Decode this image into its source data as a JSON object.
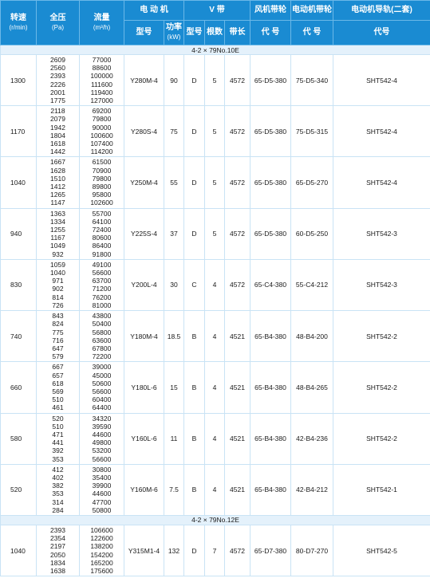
{
  "headers": {
    "speed": "转速",
    "speed_unit": "(r/min)",
    "pressure": "全压",
    "pressure_unit": "(Pa)",
    "flow": "流量",
    "flow_unit": "(m³/h)",
    "motor": "电 动 机",
    "vbelt": "V  带",
    "fan_pulley": "风机带轮",
    "motor_pulley": "电动机带轮",
    "motor_rail": "电动机导轨(二套)",
    "motor_model": "型号",
    "motor_power": "功率",
    "motor_power_unit": "(kW)",
    "belt_type": "型号",
    "belt_count": "根数",
    "belt_length": "带长",
    "fan_pulley_code": "代  号",
    "motor_pulley_code": "代  号",
    "rail_code": "代号"
  },
  "sections": [
    {
      "title": "4-2 × 79No.10E",
      "rows": [
        {
          "speed": "1300",
          "pressure": [
            "2609",
            "2560",
            "2393",
            "2226",
            "2001",
            "1775"
          ],
          "flow": [
            "77000",
            "88600",
            "100000",
            "111600",
            "119400",
            "127000"
          ],
          "motor": "Y280M-4",
          "power": "90",
          "belt": "D",
          "count": "5",
          "length": "4572",
          "fan_pulley": "65-D5-380",
          "motor_pulley": "75-D5-340",
          "rail": "SHT542-4"
        },
        {
          "speed": "1170",
          "pressure": [
            "2118",
            "2079",
            "1942",
            "1804",
            "1618",
            "1442"
          ],
          "flow": [
            "69200",
            "79800",
            "90000",
            "100600",
            "107400",
            "114200"
          ],
          "motor": "Y280S-4",
          "power": "75",
          "belt": "D",
          "count": "5",
          "length": "4572",
          "fan_pulley": "65-D5-380",
          "motor_pulley": "75-D5-315",
          "rail": "SHT542-4"
        },
        {
          "speed": "1040",
          "pressure": [
            "1667",
            "1628",
            "1510",
            "1412",
            "1265",
            "1147"
          ],
          "flow": [
            "61500",
            "70900",
            "79800",
            "89800",
            "95800",
            "102600"
          ],
          "motor": "Y250M-4",
          "power": "55",
          "belt": "D",
          "count": "5",
          "length": "4572",
          "fan_pulley": "65-D5-380",
          "motor_pulley": "65-D5-270",
          "rail": "SHT542-4"
        },
        {
          "speed": "940",
          "pressure": [
            "1363",
            "1334",
            "1255",
            "1167",
            "1049",
            "932"
          ],
          "flow": [
            "55700",
            "64100",
            "72400",
            "80600",
            "86400",
            "91800"
          ],
          "motor": "Y225S-4",
          "power": "37",
          "belt": "D",
          "count": "5",
          "length": "4572",
          "fan_pulley": "65-D5-380",
          "motor_pulley": "60-D5-250",
          "rail": "SHT542-3"
        },
        {
          "speed": "830",
          "pressure": [
            "1059",
            "1040",
            "971",
            "902",
            "814",
            "726"
          ],
          "flow": [
            "49100",
            "56600",
            "63700",
            "71200",
            "76200",
            "81000"
          ],
          "motor": "Y200L-4",
          "power": "30",
          "belt": "C",
          "count": "4",
          "length": "4572",
          "fan_pulley": "65-C4-380",
          "motor_pulley": "55-C4-212",
          "rail": "SHT542-3"
        },
        {
          "speed": "740",
          "pressure": [
            "843",
            "824",
            "775",
            "716",
            "647",
            "579"
          ],
          "flow": [
            "43800",
            "50400",
            "56800",
            "63600",
            "67800",
            "72200"
          ],
          "motor": "Y180M-4",
          "power": "18.5",
          "belt": "B",
          "count": "4",
          "length": "4521",
          "fan_pulley": "65-B4-380",
          "motor_pulley": "48-B4-200",
          "rail": "SHT542-2"
        },
        {
          "speed": "660",
          "pressure": [
            "667",
            "657",
            "618",
            "569",
            "510",
            "461"
          ],
          "flow": [
            "39000",
            "45000",
            "50600",
            "56600",
            "60400",
            "64400"
          ],
          "motor": "Y180L-6",
          "power": "15",
          "belt": "B",
          "count": "4",
          "length": "4521",
          "fan_pulley": "65-B4-380",
          "motor_pulley": "48-B4-265",
          "rail": "SHT542-2"
        },
        {
          "speed": "580",
          "pressure": [
            "520",
            "510",
            "471",
            "441",
            "392",
            "353"
          ],
          "flow": [
            "34320",
            "39590",
            "44600",
            "49800",
            "53200",
            "56600"
          ],
          "motor": "Y160L-6",
          "power": "11",
          "belt": "B",
          "count": "4",
          "length": "4521",
          "fan_pulley": "65-B4-380",
          "motor_pulley": "42-B4-236",
          "rail": "SHT542-2"
        },
        {
          "speed": "520",
          "pressure": [
            "412",
            "402",
            "382",
            "353",
            "314",
            "284"
          ],
          "flow": [
            "30800",
            "35400",
            "39900",
            "44600",
            "47700",
            "50800"
          ],
          "motor": "Y160M-6",
          "power": "7.5",
          "belt": "B",
          "count": "4",
          "length": "4521",
          "fan_pulley": "65-B4-380",
          "motor_pulley": "42-B4-212",
          "rail": "SHT542-1"
        }
      ]
    },
    {
      "title": "4-2 × 79No.12E",
      "rows": [
        {
          "speed": "1040",
          "pressure": [
            "2393",
            "2354",
            "2197",
            "2050",
            "1834",
            "1638"
          ],
          "flow": [
            "106600",
            "122600",
            "138200",
            "154200",
            "165200",
            "175600"
          ],
          "motor": "Y315M1-4",
          "power": "132",
          "belt": "D",
          "count": "7",
          "length": "4572",
          "fan_pulley": "65-D7-380",
          "motor_pulley": "80-D7-270",
          "rail": "SHT542-5"
        }
      ]
    }
  ]
}
